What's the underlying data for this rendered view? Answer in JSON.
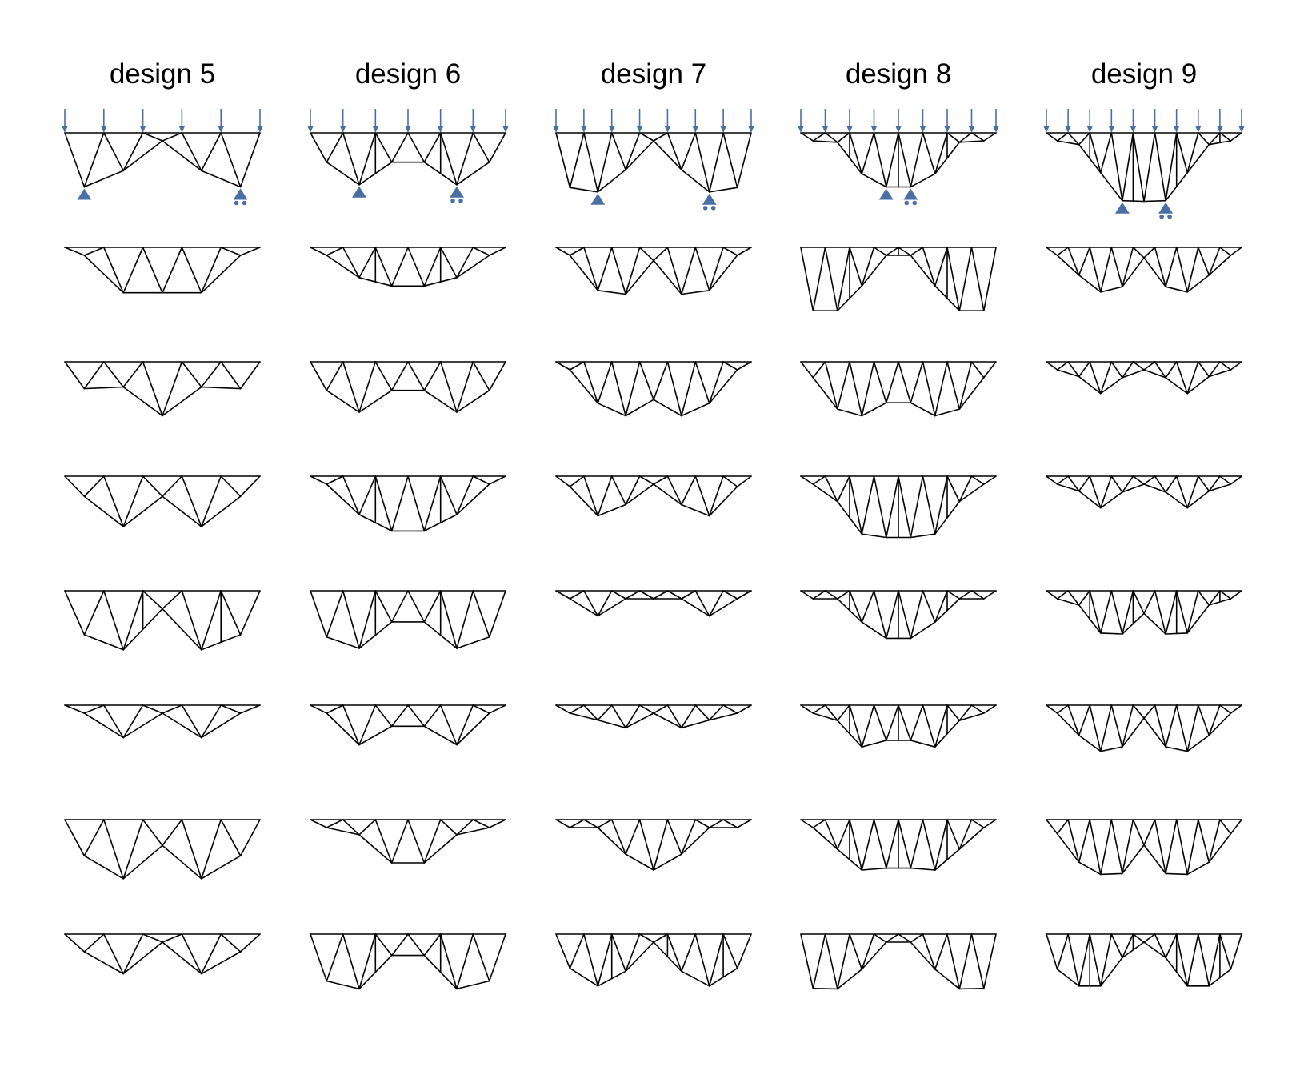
{
  "figure": {
    "columns": [
      {
        "title": "design 5"
      },
      {
        "title": "design 6"
      },
      {
        "title": "design 7"
      },
      {
        "title": "design 8"
      },
      {
        "title": "design 9"
      }
    ],
    "rows_per_column": 8,
    "first_row_shows_loads_and_supports": true,
    "load_arrow_counts": [
      6,
      7,
      8,
      9,
      10
    ],
    "colors": {
      "member": "#000000",
      "load_and_support": "#4a6fa5",
      "background": "#ffffff"
    }
  }
}
